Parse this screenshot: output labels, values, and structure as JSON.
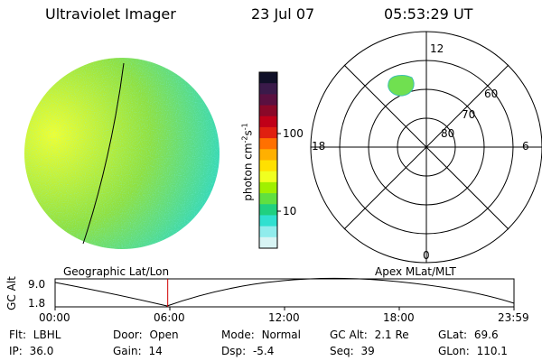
{
  "header": {
    "instrument": "Ultraviolet Imager",
    "date": "23 Jul 07",
    "time": "05:53:29 UT"
  },
  "colorbar": {
    "unit": "photon cm",
    "exp1": "-2",
    "unit_s": "s",
    "exp2": "-1",
    "tick_high": "100",
    "tick_low": "10",
    "colors": [
      "#101028",
      "#3a1a4a",
      "#5a1040",
      "#8a0828",
      "#c00018",
      "#e02010",
      "#ff7000",
      "#ffb000",
      "#ffe000",
      "#f0ff20",
      "#a0f000",
      "#60e040",
      "#20d080",
      "#30e0d0",
      "#90ecec",
      "#d8f4f4"
    ]
  },
  "polar_plot": {
    "mlt_labels": {
      "top": "12",
      "left": "18",
      "right": "6",
      "bottom": "0"
    },
    "lat_labels": [
      "60",
      "70",
      "80"
    ],
    "caption": "Apex MLat/MLT"
  },
  "earth_image": {
    "caption": "Geographic Lat/Lon",
    "colors": {
      "bright": "#f0ff30",
      "mid": "#90e040",
      "dim": "#30d8c0"
    }
  },
  "altitude_plot": {
    "ylabel": "GC Alt",
    "y_max": "9.0",
    "y_min": "1.8",
    "x_ticks": [
      "00:00",
      "06:00",
      "12:00",
      "18:00",
      "23:59"
    ],
    "marker_hour": 5.89,
    "marker_color": "#d00000"
  },
  "status": {
    "row1": [
      {
        "label": "Flt:",
        "value": "LBHL"
      },
      {
        "label": "Door:",
        "value": "Open"
      },
      {
        "label": "Mode:",
        "value": "Normal"
      },
      {
        "label": "GC Alt:",
        "value": "2.1 Re"
      },
      {
        "label": "GLat:",
        "value": "69.6"
      }
    ],
    "row2": [
      {
        "label": "IP:",
        "value": "36.0"
      },
      {
        "label": "Gain:",
        "value": "14"
      },
      {
        "label": "Dsp:",
        "value": "-5.4"
      },
      {
        "label": "Seq:",
        "value": "39"
      },
      {
        "label": "GLon:",
        "value": "110.1"
      }
    ]
  }
}
